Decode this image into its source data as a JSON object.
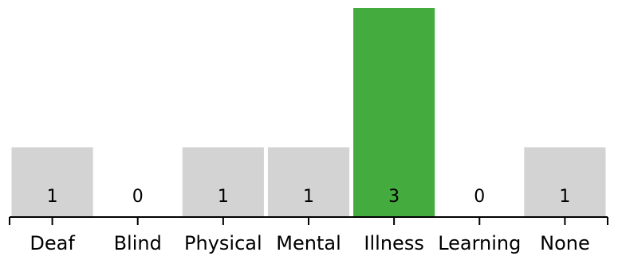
{
  "chart_data": {
    "type": "bar",
    "categories": [
      "Deaf",
      "Blind",
      "Physical",
      "Mental",
      "Illness",
      "Learning",
      "None"
    ],
    "values": [
      1,
      0,
      1,
      1,
      3,
      0,
      1
    ],
    "highlighted_category": "Illness",
    "colors": {
      "default_bar": "#d3d3d3",
      "highlight_bar": "#44ab3f",
      "axis": "#000000"
    },
    "ylim": [
      0,
      3
    ],
    "grid": false,
    "legend": "none",
    "show_value_labels": true
  }
}
